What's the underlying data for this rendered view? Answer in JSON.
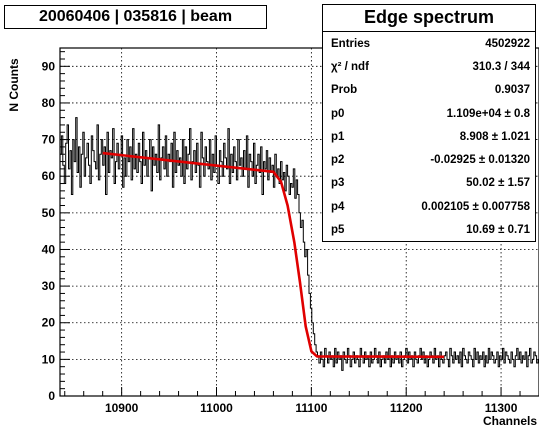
{
  "header": {
    "run_label": "20060406 | 035816 | beam"
  },
  "stats": {
    "title": "Edge spectrum",
    "rows": [
      {
        "name": "Entries",
        "value": "4502922"
      },
      {
        "name": "χ² / ndf",
        "value": "310.3 / 344"
      },
      {
        "name": "Prob",
        "value": "0.9037"
      },
      {
        "name": "p0",
        "value": "1.109e+04 ± 0.8"
      },
      {
        "name": "p1",
        "value": "8.908 ± 1.021"
      },
      {
        "name": "p2",
        "value": "-0.02925 ± 0.01320"
      },
      {
        "name": "p3",
        "value": "50.02 ± 1.57"
      },
      {
        "name": "p4",
        "value": "0.002105 ± 0.007758"
      },
      {
        "name": "p5",
        "value": "10.69 ± 0.71"
      }
    ]
  },
  "colors": {
    "histogram": "#000000",
    "fit": "#e00000",
    "grid": "#000000"
  },
  "chart_data": {
    "type": "line",
    "xlabel": "Channels",
    "ylabel": "N Counts",
    "xlim": [
      10835,
      11340
    ],
    "ylim": [
      0,
      95
    ],
    "x_ticks": [
      10900,
      11000,
      11100,
      11200,
      11300
    ],
    "y_ticks": [
      0,
      10,
      20,
      30,
      40,
      50,
      60,
      70,
      80,
      90
    ],
    "grid": true,
    "histogram": {
      "x_start": 10835,
      "bin_width": 1.5,
      "counts": [
        66,
        71,
        63,
        58,
        69,
        74,
        62,
        67,
        55,
        70,
        64,
        76,
        61,
        68,
        57,
        66,
        72,
        60,
        65,
        69,
        63,
        58,
        71,
        67,
        64,
        62,
        74,
        59,
        66,
        70,
        63,
        68,
        55,
        72,
        61,
        67,
        65,
        73,
        58,
        64,
        69,
        62,
        66,
        71,
        57,
        65,
        60,
        70,
        64,
        68,
        59,
        73,
        62,
        66,
        61,
        69,
        64,
        58,
        72,
        63,
        67,
        60,
        65,
        70,
        56,
        68,
        63,
        66,
        61,
        74,
        59,
        65,
        68,
        62,
        71,
        60,
        66,
        64,
        69,
        57,
        72,
        61,
        67,
        63,
        65,
        60,
        70,
        58,
        68,
        62,
        66,
        73,
        59,
        64,
        67,
        61,
        69,
        63,
        57,
        72,
        65,
        60,
        68,
        64,
        62,
        70,
        59,
        66,
        61,
        71,
        63,
        58,
        67,
        64,
        60,
        69,
        65,
        62,
        73,
        58,
        66,
        61,
        68,
        64,
        59,
        70,
        63,
        65,
        60,
        67,
        62,
        71,
        57,
        66,
        64,
        60,
        69,
        58,
        63,
        66,
        61,
        68,
        55,
        64,
        62,
        67,
        59,
        65,
        61,
        63,
        57,
        66,
        60,
        62,
        58,
        64,
        59,
        61,
        56,
        63,
        60,
        55,
        58,
        57,
        62,
        54,
        59,
        55,
        50,
        46,
        48,
        42,
        38,
        40,
        33,
        28,
        24,
        20,
        17,
        14,
        12,
        11,
        9,
        12,
        10,
        8,
        13,
        11,
        9,
        12,
        10,
        11,
        8,
        13,
        9,
        12,
        10,
        11,
        7,
        12,
        10,
        9,
        13,
        11,
        8,
        10,
        12,
        9,
        11,
        10,
        8,
        13,
        11,
        9,
        12,
        10,
        11,
        8,
        12,
        9,
        10,
        13,
        11,
        9,
        12,
        8,
        10,
        11,
        9,
        12,
        10,
        13,
        8,
        11,
        9,
        12,
        10,
        11,
        9,
        12,
        8,
        10,
        11,
        13,
        9,
        12,
        10,
        11,
        8,
        12,
        10,
        9,
        11,
        13,
        10,
        12,
        9,
        11,
        8,
        10,
        12,
        11,
        9,
        13,
        10,
        11,
        8,
        12,
        10,
        9,
        11,
        12,
        10,
        8,
        13,
        11,
        9,
        12,
        10,
        11,
        9,
        12,
        8,
        13,
        11,
        10,
        9,
        12,
        11,
        10,
        8,
        13,
        10,
        12,
        9,
        11,
        10,
        12,
        8,
        11,
        9,
        13,
        10,
        12,
        11,
        9,
        10,
        12,
        8,
        11,
        10,
        13,
        9,
        12,
        11,
        10,
        9,
        12,
        10,
        8,
        11,
        13,
        10,
        12,
        9,
        11,
        10,
        12,
        8,
        11,
        13,
        9,
        10,
        12,
        11,
        9,
        10
      ]
    },
    "fit": {
      "x": [
        10880,
        11060,
        11068,
        11075,
        11082,
        11088,
        11094,
        11100,
        11106,
        11240
      ],
      "y": [
        66.3,
        61.2,
        58.5,
        52,
        42,
        31,
        19,
        12.2,
        10.8,
        10.7
      ]
    }
  }
}
